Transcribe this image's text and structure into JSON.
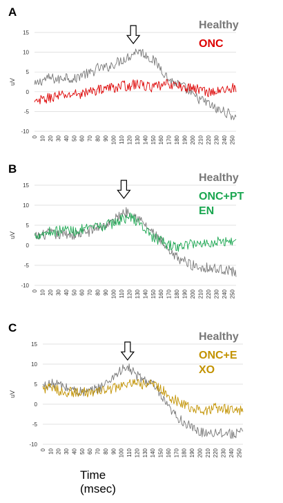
{
  "xlabel_line1": "Time",
  "xlabel_line2": "(msec)",
  "colors": {
    "healthy": "#777777",
    "onc": "#dd0000",
    "pten": "#1aa650",
    "exo": "#c29200"
  },
  "chart_data": [
    {
      "type": "line",
      "panel_label": "A",
      "ylabel": "uV",
      "ylim": [
        -10,
        15
      ],
      "yticks": [
        -10,
        -5,
        0,
        5,
        10,
        15
      ],
      "xlim": [
        0,
        255
      ],
      "xticks": [
        0,
        10,
        20,
        30,
        40,
        50,
        60,
        70,
        80,
        90,
        100,
        110,
        120,
        130,
        140,
        150,
        160,
        170,
        180,
        190,
        200,
        210,
        220,
        230,
        240,
        250
      ],
      "arrow_x": 125,
      "legend": [
        "Healthy",
        "ONC"
      ],
      "series": [
        {
          "name": "Healthy",
          "color": "#777777",
          "x": [
            0,
            10,
            20,
            30,
            40,
            50,
            60,
            70,
            80,
            90,
            100,
            110,
            120,
            130,
            140,
            150,
            160,
            170,
            180,
            190,
            200,
            210,
            220,
            230,
            240,
            250,
            255
          ],
          "y": [
            1.5,
            3,
            3.5,
            3,
            4,
            3,
            4.5,
            4.5,
            6,
            6,
            7,
            8,
            9,
            10.5,
            9.5,
            8,
            6,
            3,
            2,
            1,
            -1,
            -2,
            -3,
            -4.5,
            -5,
            -6,
            -6.5
          ]
        },
        {
          "name": "ONC",
          "color": "#dd0000",
          "x": [
            0,
            10,
            20,
            30,
            40,
            50,
            60,
            70,
            80,
            90,
            100,
            110,
            120,
            130,
            140,
            150,
            160,
            170,
            180,
            190,
            200,
            210,
            220,
            230,
            240,
            250,
            255
          ],
          "y": [
            -3,
            -2,
            -1.5,
            -1,
            -1,
            -0.5,
            -0.5,
            0,
            0.5,
            1,
            1,
            1.5,
            1.5,
            2,
            1.5,
            1,
            1.5,
            2,
            1.5,
            1,
            1,
            0.5,
            0,
            0,
            0.5,
            1,
            1
          ]
        }
      ]
    },
    {
      "type": "line",
      "panel_label": "B",
      "ylabel": "uV",
      "ylim": [
        -10,
        15
      ],
      "yticks": [
        -10,
        -5,
        0,
        5,
        10,
        15
      ],
      "xlim": [
        0,
        255
      ],
      "xticks": [
        0,
        10,
        20,
        30,
        40,
        50,
        60,
        70,
        80,
        90,
        100,
        110,
        120,
        130,
        140,
        150,
        160,
        170,
        180,
        190,
        200,
        210,
        220,
        230,
        240,
        250
      ],
      "arrow_x": 113,
      "legend": [
        "Healthy",
        "ONC+PTEN"
      ],
      "series": [
        {
          "name": "Healthy",
          "color": "#777777",
          "x": [
            0,
            10,
            20,
            30,
            40,
            50,
            60,
            70,
            80,
            90,
            100,
            110,
            120,
            130,
            140,
            150,
            160,
            170,
            180,
            190,
            200,
            210,
            220,
            230,
            240,
            250,
            255
          ],
          "y": [
            2,
            2.5,
            3,
            2.5,
            3,
            2.5,
            3,
            3.5,
            4.5,
            5,
            6,
            8,
            8.5,
            7,
            5,
            3,
            1,
            -2,
            -3,
            -4,
            -5,
            -5.5,
            -5.5,
            -6,
            -6,
            -6.5,
            -7
          ]
        },
        {
          "name": "ONC+PTEN",
          "color": "#1aa650",
          "x": [
            0,
            10,
            20,
            30,
            40,
            50,
            60,
            70,
            80,
            90,
            100,
            110,
            120,
            130,
            140,
            150,
            160,
            170,
            180,
            190,
            200,
            210,
            220,
            230,
            240,
            250,
            255
          ],
          "y": [
            2.5,
            3,
            3.5,
            3.5,
            4,
            3.5,
            4,
            4,
            4.5,
            5,
            5.5,
            6.5,
            7,
            6,
            4,
            2,
            1,
            0,
            -0.5,
            0,
            0.5,
            0.5,
            0.5,
            1,
            1,
            1,
            1
          ]
        }
      ]
    },
    {
      "type": "line",
      "panel_label": "C",
      "ylabel": "uV",
      "ylim": [
        -10,
        15
      ],
      "yticks": [
        -10,
        -5,
        0,
        5,
        10,
        15
      ],
      "xlim": [
        0,
        255
      ],
      "xticks": [
        0,
        10,
        20,
        30,
        40,
        50,
        60,
        70,
        80,
        90,
        100,
        110,
        120,
        130,
        140,
        150,
        160,
        170,
        180,
        190,
        200,
        210,
        220,
        230,
        240,
        250
      ],
      "arrow_x": 108,
      "legend": [
        "Healthy",
        "ONC+EXO"
      ],
      "series": [
        {
          "name": "Healthy",
          "color": "#777777",
          "x": [
            0,
            10,
            20,
            30,
            40,
            50,
            60,
            70,
            80,
            90,
            100,
            110,
            120,
            130,
            140,
            150,
            160,
            170,
            180,
            190,
            200,
            210,
            220,
            230,
            240,
            250,
            255
          ],
          "y": [
            4.5,
            5,
            5,
            4,
            3.5,
            3,
            3,
            4,
            5,
            7,
            8.5,
            9,
            7,
            6,
            5,
            2,
            -1,
            -3,
            -4.5,
            -6,
            -7,
            -7,
            -7,
            -7,
            -7.5,
            -7,
            -7.5
          ]
        },
        {
          "name": "ONC+EXO",
          "color": "#c29200",
          "x": [
            0,
            10,
            20,
            30,
            40,
            50,
            60,
            70,
            80,
            90,
            100,
            110,
            120,
            130,
            140,
            150,
            160,
            170,
            180,
            190,
            200,
            210,
            220,
            230,
            240,
            250,
            255
          ],
          "y": [
            4,
            4,
            3.5,
            3,
            3,
            3,
            3,
            3,
            3.5,
            4,
            4.5,
            5,
            5,
            5,
            5,
            4,
            2,
            1,
            0,
            -1,
            -1.5,
            -1.5,
            -1,
            -1,
            -1.5,
            -1.5,
            -1.5
          ]
        }
      ]
    }
  ]
}
